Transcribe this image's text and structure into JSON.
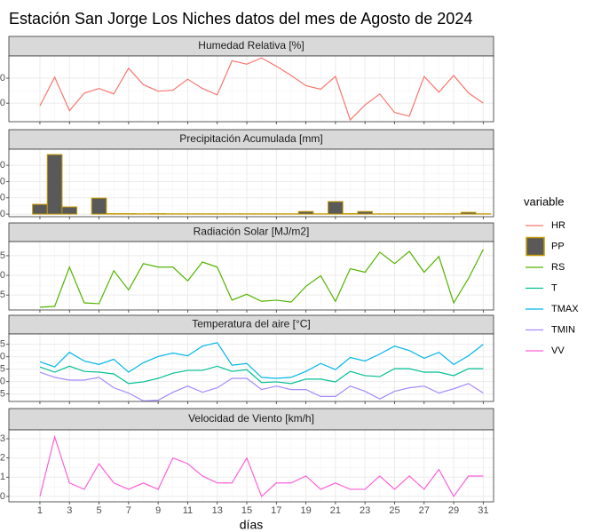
{
  "title": "Estación San Jorge Los Niches datos del mes de Agosto de 2024",
  "legend": {
    "title": "variable"
  },
  "chart_data": [
    {
      "type": "line",
      "title": "Humedad Relativa [%]",
      "x": [
        1,
        2,
        3,
        4,
        5,
        6,
        7,
        8,
        9,
        10,
        11,
        12,
        13,
        14,
        15,
        16,
        17,
        18,
        19,
        20,
        21,
        22,
        23,
        24,
        25,
        26,
        27,
        28,
        29,
        30,
        31
      ],
      "series": [
        {
          "name": "HR",
          "color": "#F8766D",
          "values": [
            78.9,
            90.4,
            77,
            84,
            85.9,
            83.7,
            94,
            87.4,
            84.8,
            85.2,
            89.6,
            85.9,
            83.3,
            97,
            95.6,
            98.1,
            94.8,
            91.1,
            87,
            85.6,
            90.7,
            73.3,
            79.3,
            83.7,
            76.3,
            74.8,
            90.7,
            84.4,
            91.1,
            84.1,
            80
          ]
        }
      ],
      "xlim": [
        -1.1,
        31.7
      ],
      "ylim": [
        72.6,
        98.9
      ],
      "yticks": [
        80,
        90
      ]
    },
    {
      "type": "bar",
      "title": "Precipitación Acumulada [mm]",
      "x": [
        1,
        2,
        3,
        4,
        5,
        6,
        7,
        8,
        9,
        10,
        11,
        12,
        13,
        14,
        15,
        16,
        17,
        18,
        19,
        20,
        21,
        22,
        23,
        24,
        25,
        26,
        27,
        28,
        29,
        30,
        31
      ],
      "series": [
        {
          "name": "PP",
          "color": "#595959",
          "outline": "#C49A00",
          "values": [
            6,
            36.6,
            4.4,
            0,
            9.8,
            0.3,
            0.3,
            0.2,
            0.3,
            0.2,
            0.2,
            0.2,
            0.2,
            0.2,
            0.2,
            0.2,
            0.2,
            0.2,
            1.6,
            0.2,
            7.7,
            0.3,
            1.6,
            0.2,
            0.2,
            0.2,
            0.2,
            0.2,
            0.2,
            1.1,
            0.2
          ]
        }
      ],
      "xlim": [
        -1.1,
        31.7
      ],
      "ylim": [
        -1.6,
        39.9
      ],
      "yticks": [
        0,
        10,
        20,
        30
      ]
    },
    {
      "type": "line",
      "title": "Radiación Solar [MJ/m2]",
      "x": [
        1,
        2,
        3,
        4,
        5,
        6,
        7,
        8,
        9,
        10,
        11,
        12,
        13,
        14,
        15,
        16,
        17,
        18,
        19,
        20,
        21,
        22,
        23,
        24,
        25,
        26,
        27,
        28,
        29,
        30,
        31
      ],
      "series": [
        {
          "name": "RS",
          "color": "#53B400",
          "values": [
            11.9,
            12.1,
            22.1,
            13,
            12.8,
            21.2,
            16.3,
            23,
            22.1,
            22.1,
            18.6,
            23.4,
            22.1,
            13.7,
            15.2,
            13.4,
            13.7,
            13.2,
            17.2,
            19.9,
            13.4,
            21.7,
            20.8,
            25.9,
            23,
            26.1,
            20.8,
            24.8,
            13,
            19.2,
            26.6
          ]
        }
      ],
      "xlim": [
        -1.1,
        31.7
      ],
      "ylim": [
        11.2,
        28.6
      ],
      "yticks": [
        15,
        20,
        25
      ]
    },
    {
      "type": "line",
      "title": "Temperatura del aire [°C]",
      "x": [
        1,
        2,
        3,
        4,
        5,
        6,
        7,
        8,
        9,
        10,
        11,
        12,
        13,
        14,
        15,
        16,
        17,
        18,
        19,
        20,
        21,
        22,
        23,
        24,
        25,
        26,
        27,
        28,
        29,
        30,
        31
      ],
      "series": [
        {
          "name": "T",
          "color": "#00C094",
          "values": [
            25.9,
            23.8,
            26.2,
            24.1,
            23.8,
            23.1,
            19.2,
            19.9,
            21.3,
            23.4,
            24.5,
            24.5,
            26.2,
            24.1,
            24.8,
            19.6,
            19.9,
            19.2,
            21,
            21,
            19.9,
            24.1,
            22.4,
            22,
            25.2,
            25.2,
            23.8,
            23.8,
            22.4,
            25.2,
            25.2
          ]
        },
        {
          "name": "TMAX",
          "color": "#00B6EB",
          "values": [
            28,
            25.9,
            31.8,
            28.3,
            26.9,
            29,
            23.8,
            27.6,
            30.1,
            31.5,
            30.4,
            34.3,
            35.7,
            26.6,
            27.3,
            21.7,
            21.3,
            21.7,
            24.1,
            27.3,
            24.8,
            29.7,
            28.3,
            31.1,
            34.3,
            32.5,
            29.4,
            31.8,
            26.9,
            30.4,
            35
          ]
        },
        {
          "name": "TMIN",
          "color": "#A58AFF",
          "values": [
            23.8,
            21.7,
            20.6,
            20.6,
            21.7,
            17.5,
            15.4,
            12.2,
            12.5,
            15.7,
            18.2,
            15.7,
            17.5,
            21.3,
            21.3,
            16.8,
            18.2,
            16.8,
            16.8,
            14,
            14,
            18.2,
            16.1,
            13,
            16.1,
            17.5,
            18.2,
            15.4,
            17.1,
            19.2,
            15.4
          ]
        }
      ],
      "xlim": [
        -1.1,
        31.7
      ],
      "ylim": [
        12,
        39.2
      ],
      "yticks": [
        15,
        20,
        25,
        30,
        35
      ]
    },
    {
      "type": "line",
      "title": "Velocidad de Viento [km/h]",
      "x": [
        1,
        2,
        3,
        4,
        5,
        6,
        7,
        8,
        9,
        10,
        11,
        12,
        13,
        14,
        15,
        16,
        17,
        18,
        19,
        20,
        21,
        22,
        23,
        24,
        25,
        26,
        27,
        28,
        29,
        30,
        31
      ],
      "series": [
        {
          "name": "VV",
          "color": "#FB61D7",
          "values": [
            0,
            3.1,
            0.7,
            0.37,
            1.7,
            0.7,
            0.37,
            0.7,
            0.37,
            2,
            1.7,
            1.06,
            0.7,
            0.7,
            2,
            0,
            0.7,
            0.7,
            1.06,
            0.37,
            0.7,
            0.37,
            0.37,
            1.06,
            0.37,
            1.06,
            0.37,
            1.4,
            0,
            1.06,
            1.06
          ]
        }
      ],
      "xlim": [
        -1.1,
        31.7
      ],
      "ylim": [
        -0.28,
        3.46
      ],
      "yticks": [
        0,
        1,
        2,
        3
      ],
      "xticks": [
        1,
        3,
        5,
        7,
        9,
        11,
        13,
        15,
        17,
        19,
        21,
        23,
        25,
        27,
        29,
        31
      ],
      "xlabel": "días"
    }
  ]
}
